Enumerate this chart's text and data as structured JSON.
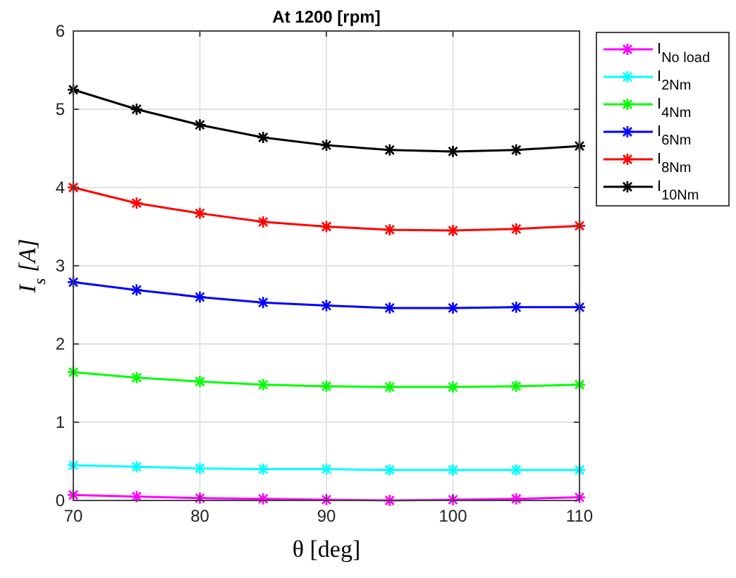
{
  "chart_data": {
    "type": "line",
    "title": "At 1200 [rpm]",
    "xlabel": "θ [deg]",
    "ylabel": "I$_{s}$ [A]",
    "x": [
      70,
      75,
      80,
      85,
      90,
      95,
      100,
      105,
      110
    ],
    "xlim": [
      70,
      110
    ],
    "xticks": [
      70,
      80,
      90,
      100,
      110
    ],
    "ylim": [
      0,
      6
    ],
    "yticks": [
      0,
      1,
      2,
      3,
      4,
      5,
      6
    ],
    "grid": true,
    "legend": "top right",
    "marker": "cross",
    "line_style": "solid",
    "series": [
      {
        "name": "I$_{No load}$",
        "color": "#ff00ff",
        "values": [
          0.07,
          0.05,
          0.03,
          0.02,
          0.01,
          0.0,
          0.01,
          0.02,
          0.04
        ]
      },
      {
        "name": "I$_{2Nm}$",
        "color": "#00ffff",
        "values": [
          0.45,
          0.43,
          0.41,
          0.4,
          0.4,
          0.39,
          0.39,
          0.39,
          0.39
        ]
      },
      {
        "name": "I$_{4Nm}$",
        "color": "#00ff00",
        "values": [
          1.64,
          1.57,
          1.52,
          1.48,
          1.46,
          1.45,
          1.45,
          1.46,
          1.48
        ]
      },
      {
        "name": "I$_{6Nm}$",
        "color": "#0000ff",
        "values": [
          2.79,
          2.69,
          2.6,
          2.53,
          2.49,
          2.46,
          2.46,
          2.47,
          2.47
        ]
      },
      {
        "name": "I$_{8Nm}$",
        "color": "#ff0000",
        "values": [
          4.0,
          3.8,
          3.67,
          3.56,
          3.5,
          3.46,
          3.45,
          3.47,
          3.51
        ]
      },
      {
        "name": "I$_{10Nm}$",
        "color": "#000000",
        "values": [
          5.25,
          5.0,
          4.8,
          4.64,
          4.54,
          4.48,
          4.46,
          4.48,
          4.53
        ]
      }
    ]
  }
}
